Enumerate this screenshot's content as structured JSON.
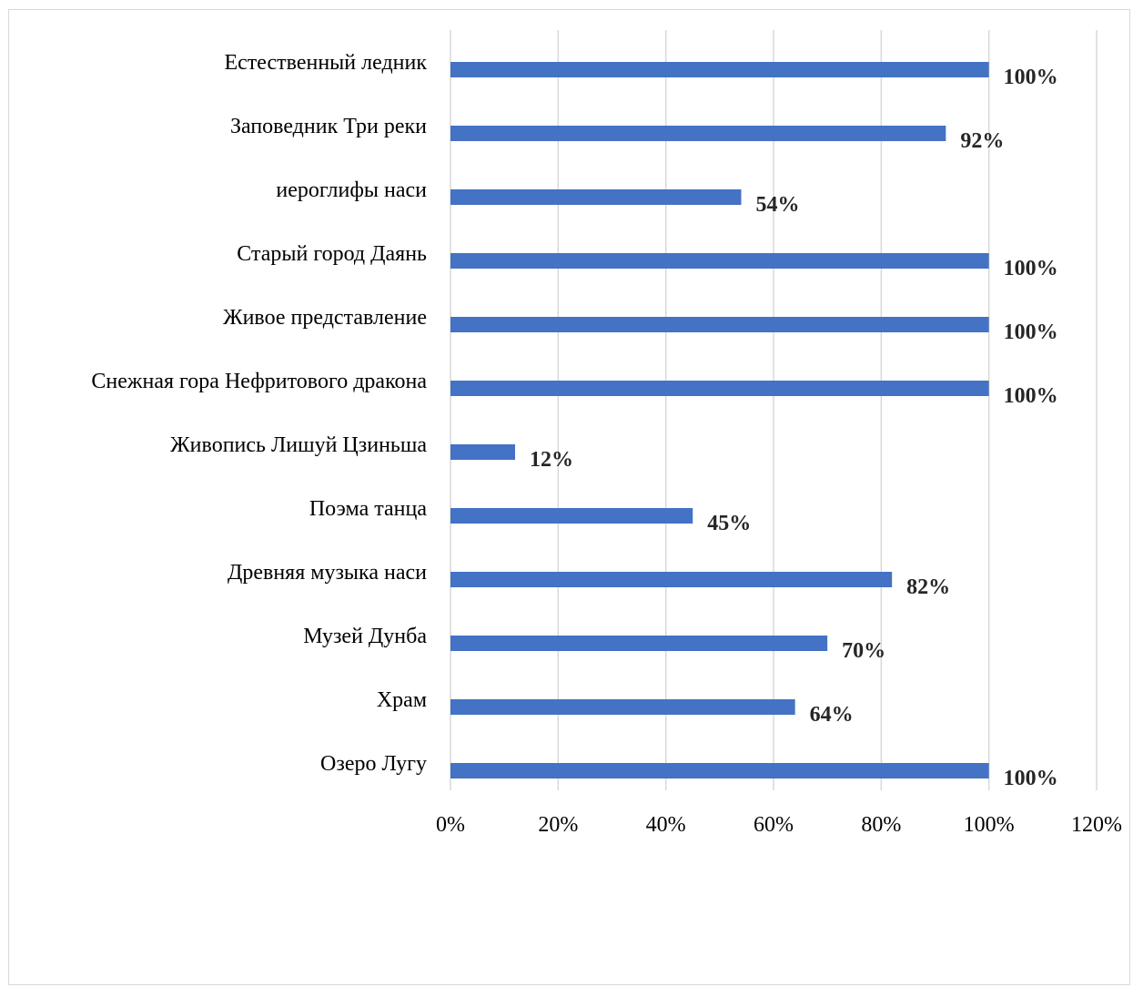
{
  "chart_data": {
    "type": "bar",
    "orientation": "horizontal",
    "title": "",
    "xlabel": "",
    "ylabel": "",
    "categories": [
      "Естественный ледник",
      "Заповедник Три реки",
      "иероглифы наси",
      "Старый город Даянь",
      "Живое представление",
      "Снежная гора Нефритового дракона",
      "Живопись Лишуй Цзиньша",
      "Поэма танца",
      "Древняя музыка наси",
      "Музей Дунба",
      "Храм",
      "Озеро Лугу"
    ],
    "values": [
      100,
      92,
      54,
      100,
      100,
      100,
      12,
      45,
      82,
      70,
      64,
      100
    ],
    "data_labels": [
      "100%",
      "92%",
      "54%",
      "100%",
      "100%",
      "100%",
      "12%",
      "45%",
      "82%",
      "70%",
      "64%",
      "100%"
    ],
    "xlim": [
      0,
      120
    ],
    "x_ticks": [
      0,
      20,
      40,
      60,
      80,
      100,
      120
    ],
    "x_tick_labels": [
      "0%",
      "20%",
      "40%",
      "60%",
      "80%",
      "100%",
      "120%"
    ],
    "grid": "vertical",
    "legend": "none",
    "colors": {
      "bar": "#4472c4",
      "grid": "#d9d9d9",
      "border": "#d9d9d9",
      "data_label": "#262626"
    }
  }
}
